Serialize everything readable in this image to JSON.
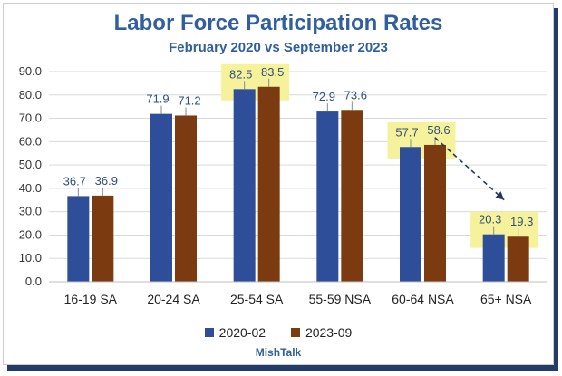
{
  "chart_data": {
    "type": "bar",
    "title": "Labor Force Participation Rates",
    "subtitle": "February 2020 vs September 2023",
    "categories": [
      "16-19 SA",
      "20-24 SA",
      "25-54 SA",
      "55-59 NSA",
      "60-64 NSA",
      "65+ NSA"
    ],
    "series": [
      {
        "name": "2020-02",
        "values": [
          36.7,
          71.9,
          82.5,
          72.9,
          57.7,
          20.3
        ],
        "color": "#2e4e9a"
      },
      {
        "name": "2023-09",
        "values": [
          36.9,
          71.2,
          83.5,
          73.6,
          58.6,
          19.3
        ],
        "color": "#7b3a10"
      }
    ],
    "ylim": [
      0,
      90
    ],
    "yticks": [
      "0.0",
      "10.0",
      "20.0",
      "30.0",
      "40.0",
      "50.0",
      "60.0",
      "70.0",
      "80.0",
      "90.0"
    ],
    "ytick_values": [
      0,
      10,
      20,
      30,
      40,
      50,
      60,
      70,
      80,
      90
    ],
    "grid": true,
    "legend_position": "bottom",
    "highlighted_categories": [
      "25-54 SA",
      "60-64 NSA",
      "65+ NSA"
    ],
    "highlight_color": "#f6f29b",
    "annotation": "dashed arrow from 60-64 NSA to 65+ NSA",
    "source": "MishTalk"
  }
}
